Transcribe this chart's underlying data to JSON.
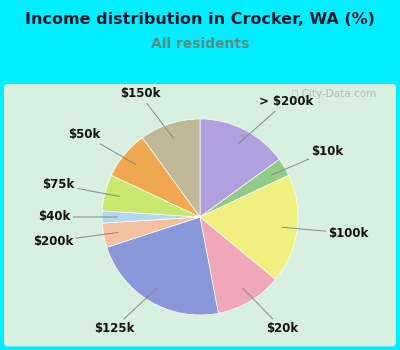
{
  "title": "Income distribution in Crocker, WA (%)",
  "subtitle": "All residents",
  "title_color": "#1a1a2e",
  "subtitle_color": "#5a8a7a",
  "bg_cyan": "#00eeff",
  "bg_chart": "#d8f0e0",
  "labels": [
    "> $200k",
    "$10k",
    "$100k",
    "$20k",
    "$125k",
    "$200k",
    "$40k",
    "$75k",
    "$50k",
    "$150k"
  ],
  "values": [
    15,
    3,
    18,
    11,
    23,
    4,
    2,
    6,
    8,
    10
  ],
  "colors": [
    "#b0a0dc",
    "#90cc88",
    "#f0f080",
    "#f0a8b8",
    "#8898d8",
    "#f5c0a0",
    "#b0d8f0",
    "#c8e870",
    "#f0a850",
    "#c0b898"
  ],
  "startangle": 90,
  "label_fontsize": 8.5,
  "watermark": "City-Data.com"
}
